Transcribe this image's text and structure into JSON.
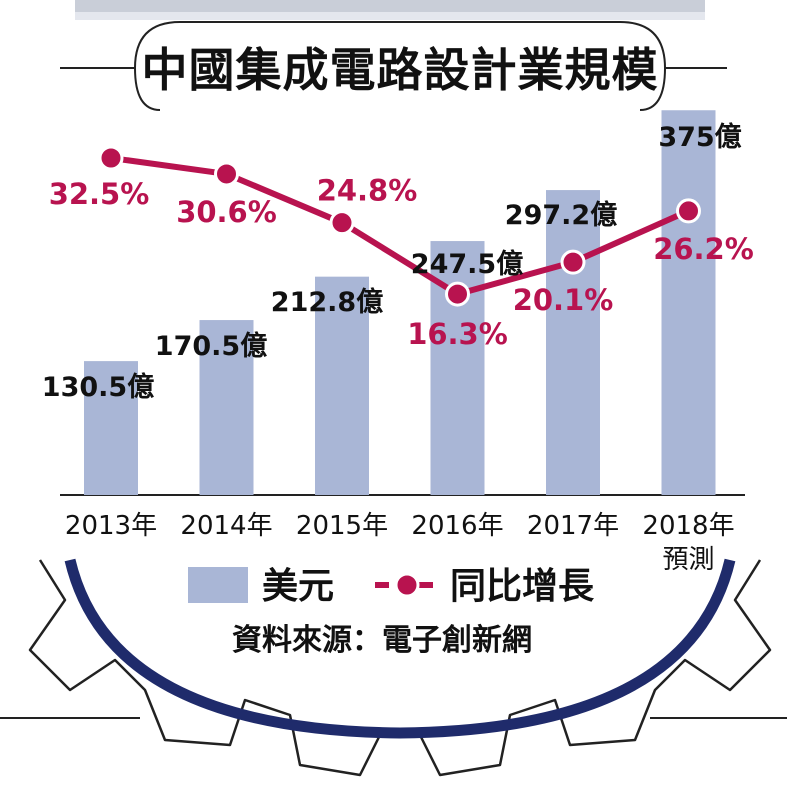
{
  "chart_data": {
    "type": "bar+line",
    "title": "中國集成電路設計業規模",
    "categories": [
      "2013年",
      "2014年",
      "2015年",
      "2016年",
      "2017年",
      "2018年"
    ],
    "category_sublabels": [
      "",
      "",
      "",
      "",
      "",
      "預測"
    ],
    "series": [
      {
        "name": "美元",
        "type": "bar",
        "values": [
          130.5,
          170.5,
          212.8,
          247.5,
          297.2,
          375
        ],
        "labels": [
          "130.5億",
          "170.5億",
          "212.8億",
          "247.5億",
          "297.2億",
          "375億"
        ],
        "color": "#a9b6d6"
      },
      {
        "name": "同比增長",
        "type": "line",
        "values": [
          32.5,
          30.6,
          24.8,
          16.3,
          20.1,
          26.2
        ],
        "labels": [
          "32.5%",
          "30.6%",
          "24.8%",
          "16.3%",
          "20.1%",
          "26.2%"
        ],
        "color": "#b8134f"
      }
    ],
    "legend_placement": "bottom",
    "grid": false
  },
  "source": "資料來源：電子創新網"
}
